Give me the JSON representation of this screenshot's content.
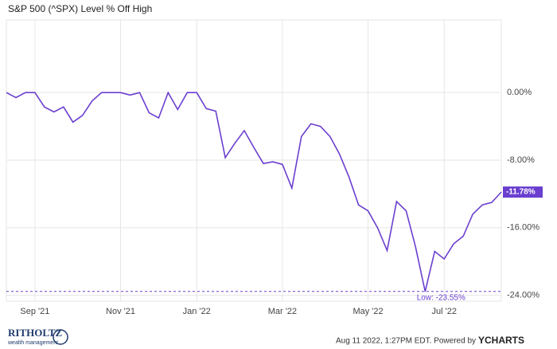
{
  "chart_data": {
    "type": "line",
    "title": "S&P 500 (^SPX) Level % Off High",
    "categories": [
      null,
      null,
      null,
      "Sep '21",
      null,
      null,
      null,
      null,
      null,
      null,
      null,
      null,
      "Nov '21",
      null,
      null,
      null,
      null,
      null,
      null,
      null,
      "Jan '22",
      null,
      null,
      null,
      null,
      null,
      null,
      null,
      null,
      "Mar '22",
      null,
      null,
      null,
      null,
      null,
      null,
      null,
      null,
      "May '22",
      null,
      null,
      null,
      null,
      null,
      null,
      null,
      "Jul '22",
      null,
      null,
      null,
      null,
      null,
      null
    ],
    "series": [
      {
        "name": "S&P 500 (^SPX) Level % Off High",
        "color": "#6a3fcf",
        "values": [
          0,
          -0.6,
          0,
          0,
          -1.7,
          -2.3,
          -1.7,
          -3.5,
          -2.7,
          -1.0,
          0,
          0,
          0,
          -0.3,
          0,
          -2.4,
          -3.0,
          0,
          -2.0,
          0,
          0,
          -1.9,
          -2.2,
          -7.7,
          -6.0,
          -4.5,
          -6.5,
          -8.4,
          -8.2,
          -8.5,
          -11.3,
          -5.2,
          -3.7,
          -4.0,
          -5.2,
          -7.3,
          -10.0,
          -13.3,
          -14.0,
          -16.0,
          -18.7,
          -12.9,
          -14.0,
          -18.3,
          -23.55,
          -18.8,
          -19.7,
          -17.9,
          -17.0,
          -14.4,
          -13.3,
          -13.0,
          -11.78
        ],
        "value_labels": [
          null,
          null,
          null,
          null,
          null,
          null,
          null,
          null,
          null,
          null,
          null,
          null,
          null,
          null,
          null,
          null,
          null,
          null,
          null,
          null,
          null,
          null,
          null,
          null,
          null,
          null,
          null,
          null,
          null,
          null,
          null,
          null,
          null,
          null,
          null,
          null,
          null,
          null,
          null,
          null,
          null,
          null,
          null,
          null,
          null,
          null,
          null,
          null,
          null,
          null,
          null,
          null,
          "-11.78%"
        ]
      }
    ],
    "low": {
      "value": -23.55,
      "label": "Low: -23.55%"
    },
    "ylim": [
      -24.7,
      8.6
    ],
    "yticks": [
      {
        "value": 0,
        "label": "0.00%"
      },
      {
        "value": -8,
        "label": "-8.00%"
      },
      {
        "value": -16,
        "label": "-16.00%"
      },
      {
        "value": -24,
        "label": "-24.00%"
      }
    ],
    "grid": true
  },
  "footer": {
    "logo": "RITHOLTZ",
    "logo_sub": "wealth management",
    "timestamp": "Aug 11 2022, 1:27PM EDT. Powered by",
    "brand": "YCHARTS"
  }
}
